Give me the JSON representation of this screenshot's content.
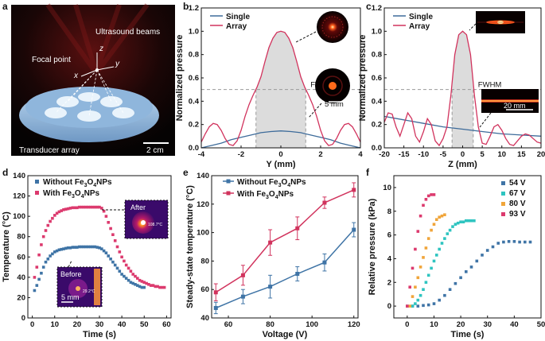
{
  "panels": {
    "a": "a",
    "b": "b",
    "c": "c",
    "d": "d",
    "e": "e",
    "f": "f"
  },
  "panel_a": {
    "labels": {
      "ultrasound": "Ultrasound beams",
      "focal": "Focal point",
      "transducer": "Transducer array",
      "scale": "2 cm",
      "z": "z",
      "x": "x",
      "y": "y"
    }
  },
  "colors": {
    "single": "#3d6b9a",
    "array": "#d1335d",
    "pink": "#dc3a6e",
    "blue": "#3f74a6",
    "teal": "#2ec4c0",
    "orange": "#f0a53a",
    "gray": "#9a9a9a"
  },
  "chart_data": [
    {
      "id": "b",
      "type": "line",
      "xlabel": "Y (mm)",
      "ylabel": "Normalized pressure",
      "xlim": [
        -4,
        4
      ],
      "ylim": [
        0,
        1.2
      ],
      "xticks": [
        "-4",
        "-2",
        "0",
        "2",
        "4"
      ],
      "yticks": [
        "0.0",
        "0.2",
        "0.4",
        "0.6",
        "0.8",
        "1.0",
        "1.2"
      ],
      "fwhm_label": "FWHM",
      "fwhm_range": [
        -1.25,
        1.25
      ],
      "fwhm_level": 0.5,
      "inset_scale": "5 mm",
      "series": [
        {
          "name": "Single",
          "x": [
            -4,
            -3.5,
            -3,
            -2.5,
            -2,
            -1.5,
            -1,
            -0.5,
            0,
            0.5,
            1,
            1.5,
            2,
            2.5,
            3,
            3.5,
            4
          ],
          "y": [
            0.0,
            0.02,
            0.04,
            0.07,
            0.09,
            0.11,
            0.13,
            0.14,
            0.145,
            0.14,
            0.13,
            0.11,
            0.09,
            0.07,
            0.04,
            0.02,
            0.0
          ]
        },
        {
          "name": "Array",
          "x": [
            -4,
            -3.8,
            -3.6,
            -3.4,
            -3.2,
            -3.0,
            -2.8,
            -2.6,
            -2.4,
            -2.2,
            -2.0,
            -1.8,
            -1.6,
            -1.4,
            -1.2,
            -1.0,
            -0.8,
            -0.6,
            -0.4,
            -0.2,
            0,
            0.2,
            0.4,
            0.6,
            0.8,
            1.0,
            1.2,
            1.4,
            1.6,
            1.8,
            2.0,
            2.2,
            2.4,
            2.6,
            2.8,
            3.0,
            3.2,
            3.4,
            3.6,
            3.8,
            4.0
          ],
          "y": [
            0.05,
            0.12,
            0.18,
            0.21,
            0.2,
            0.15,
            0.08,
            0.03,
            0.02,
            0.06,
            0.15,
            0.27,
            0.37,
            0.45,
            0.52,
            0.61,
            0.74,
            0.86,
            0.94,
            0.99,
            1.0,
            0.99,
            0.94,
            0.86,
            0.74,
            0.61,
            0.52,
            0.45,
            0.37,
            0.27,
            0.15,
            0.06,
            0.02,
            0.03,
            0.08,
            0.15,
            0.2,
            0.21,
            0.18,
            0.12,
            0.05
          ]
        }
      ]
    },
    {
      "id": "c",
      "type": "line",
      "xlabel": "Z (mm)",
      "ylabel": "Normalized pressure",
      "xlim": [
        -20,
        20
      ],
      "ylim": [
        0,
        1.2
      ],
      "xticks": [
        "-20",
        "-15",
        "-10",
        "-5",
        "0",
        "5",
        "10",
        "15",
        "20"
      ],
      "yticks": [
        "0.0",
        "0.2",
        "0.4",
        "0.6",
        "0.8",
        "1.0",
        "1.2"
      ],
      "fwhm_label": "FWHM",
      "fwhm_range": [
        -2.7,
        2.7
      ],
      "fwhm_level": 0.5,
      "inset_scale": "20 mm",
      "series": [
        {
          "name": "Single",
          "x": [
            -20,
            -15,
            -10,
            -5,
            0,
            5,
            10,
            15,
            20
          ],
          "y": [
            0.27,
            0.24,
            0.21,
            0.18,
            0.16,
            0.14,
            0.12,
            0.11,
            0.1
          ]
        },
        {
          "name": "Array",
          "x": [
            -20,
            -19,
            -18,
            -17,
            -16,
            -15,
            -14,
            -13,
            -12,
            -11,
            -10,
            -9,
            -8,
            -7,
            -6,
            -5,
            -4,
            -3,
            -2,
            -1,
            0,
            1,
            2,
            3,
            4,
            5,
            6,
            7,
            8,
            9,
            10,
            11,
            12,
            13,
            14,
            15,
            16,
            17,
            18,
            19,
            20
          ],
          "y": [
            0.22,
            0.3,
            0.29,
            0.18,
            0.1,
            0.2,
            0.3,
            0.25,
            0.1,
            0.05,
            0.14,
            0.25,
            0.2,
            0.06,
            0.02,
            0.08,
            0.18,
            0.45,
            0.8,
            0.97,
            1.0,
            0.97,
            0.8,
            0.45,
            0.18,
            0.04,
            0.03,
            0.1,
            0.18,
            0.2,
            0.15,
            0.08,
            0.03,
            0.02,
            0.06,
            0.1,
            0.12,
            0.11,
            0.08,
            0.05,
            0.04
          ]
        }
      ]
    },
    {
      "id": "d",
      "type": "scatter",
      "xlabel": "Time (s)",
      "ylabel": "Temperature (°C)",
      "xlim": [
        -2,
        62
      ],
      "ylim": [
        0,
        140
      ],
      "xticks": [
        "0",
        "10",
        "20",
        "30",
        "40",
        "50",
        "60"
      ],
      "yticks": [
        "0",
        "20",
        "40",
        "60",
        "80",
        "100",
        "120",
        "140"
      ],
      "inset_after": "After",
      "inset_after_temp": "108.7°C",
      "inset_before": "Before",
      "inset_before_temp": "29.2°C",
      "inset_scale": "5 mm",
      "series": [
        {
          "name": "Without Fe3O4NPs",
          "x": [
            1,
            2,
            3,
            4,
            5,
            6,
            7,
            8,
            9,
            10,
            11,
            12,
            13,
            14,
            15,
            16,
            17,
            18,
            19,
            20,
            21,
            22,
            23,
            24,
            25,
            26,
            27,
            28,
            29,
            30,
            31,
            32,
            33,
            34,
            35,
            36,
            37,
            38,
            39,
            40,
            41,
            42,
            43,
            44,
            45,
            46,
            47,
            48,
            49,
            50
          ],
          "y": [
            27,
            32,
            38,
            44,
            50,
            55,
            58,
            61,
            63,
            65,
            66,
            67,
            67.5,
            68,
            68.5,
            69,
            69,
            69.5,
            69.5,
            69.5,
            70,
            70,
            70,
            70,
            70,
            70,
            70,
            70,
            69.5,
            69,
            68,
            66,
            64,
            61,
            58,
            55,
            52,
            49,
            46,
            43,
            41,
            39,
            37,
            35,
            34,
            33,
            32,
            31,
            30,
            30
          ]
        },
        {
          "name": "With Fe3O4NPs",
          "x": [
            1,
            2,
            3,
            4,
            5,
            6,
            7,
            8,
            9,
            10,
            11,
            12,
            13,
            14,
            15,
            16,
            17,
            18,
            19,
            20,
            21,
            22,
            23,
            24,
            25,
            26,
            27,
            28,
            29,
            30,
            31,
            32,
            33,
            34,
            35,
            36,
            37,
            38,
            39,
            40,
            41,
            42,
            43,
            44,
            45,
            46,
            47,
            48,
            49,
            50,
            51,
            52,
            53,
            54,
            55,
            56,
            57,
            58,
            59
          ],
          "y": [
            40,
            50,
            62,
            72,
            80,
            86,
            91,
            95,
            98,
            101,
            103,
            104.5,
            105.5,
            106.5,
            107,
            107.5,
            108,
            108.5,
            108.5,
            108.5,
            109,
            109,
            109,
            109,
            109,
            109,
            109,
            109,
            109,
            109,
            108,
            105,
            100,
            94,
            88,
            82,
            76,
            70,
            65,
            60,
            56,
            52,
            49,
            46,
            43,
            41,
            39,
            37,
            36,
            35,
            34,
            33,
            32,
            32,
            31,
            31,
            30,
            30,
            30
          ]
        }
      ]
    },
    {
      "id": "e",
      "type": "line",
      "xlabel": "Voltage (V)",
      "ylabel": "Steady-state temperature (°C)",
      "xlim": [
        52,
        122
      ],
      "ylim": [
        40,
        140
      ],
      "xticks": [
        "60",
        "80",
        "100",
        "120"
      ],
      "yticks": [
        "40",
        "60",
        "80",
        "100",
        "120",
        "140"
      ],
      "series": [
        {
          "name": "Without Fe3O4NPs",
          "x": [
            54,
            67,
            80,
            93,
            106,
            120
          ],
          "y": [
            47,
            55,
            62,
            71,
            79,
            102
          ],
          "err": [
            4,
            5,
            8,
            5,
            6,
            5
          ]
        },
        {
          "name": "With Fe3O4NPs",
          "x": [
            54,
            67,
            80,
            93,
            106,
            120
          ],
          "y": [
            58,
            70,
            93,
            103,
            121,
            130
          ],
          "err": [
            6,
            7,
            9,
            8,
            4,
            5
          ]
        }
      ]
    },
    {
      "id": "f",
      "type": "scatter",
      "xlabel": "Time (s)",
      "ylabel": "Relative pressure (kPa)",
      "xlim": [
        -5,
        50
      ],
      "ylim": [
        -1,
        11
      ],
      "xticks": [
        "0",
        "10",
        "20",
        "30",
        "40",
        "50"
      ],
      "yticks": [
        "0",
        "2",
        "4",
        "6",
        "8",
        "10"
      ],
      "series": [
        {
          "name": "54 V",
          "x": [
            0,
            2,
            4,
            6,
            8,
            10,
            12,
            14,
            16,
            18,
            20,
            22,
            24,
            26,
            28,
            30,
            32,
            34,
            36,
            38,
            40,
            42,
            44,
            46
          ],
          "y": [
            0,
            0,
            0,
            0.05,
            0.1,
            0.2,
            0.5,
            0.9,
            1.4,
            1.9,
            2.4,
            2.9,
            3.3,
            3.8,
            4.3,
            4.7,
            5.0,
            5.3,
            5.4,
            5.45,
            5.45,
            5.4,
            5.4,
            5.4
          ]
        },
        {
          "name": "67 V",
          "x": [
            2,
            3,
            4,
            5,
            6,
            7,
            8,
            9,
            10,
            11,
            12,
            13,
            14,
            15,
            16,
            17,
            18,
            19,
            20,
            21,
            22,
            23,
            24,
            25
          ],
          "y": [
            0,
            0.2,
            0.5,
            0.9,
            1.4,
            2.0,
            2.6,
            3.2,
            3.8,
            4.3,
            4.8,
            5.3,
            5.7,
            6.1,
            6.4,
            6.7,
            6.9,
            7.0,
            7.1,
            7.1,
            7.2,
            7.2,
            7.2,
            7.2
          ]
        },
        {
          "name": "80 V",
          "x": [
            1,
            2,
            3,
            4,
            5,
            6,
            7,
            8,
            9,
            10,
            11,
            12,
            13,
            14
          ],
          "y": [
            0,
            0.8,
            1.6,
            2.4,
            3.3,
            4.1,
            4.9,
            5.7,
            6.4,
            6.9,
            7.3,
            7.5,
            7.6,
            7.7
          ]
        },
        {
          "name": "93 V",
          "x": [
            0,
            1,
            2,
            3,
            4,
            5,
            6,
            7,
            8,
            9,
            10
          ],
          "y": [
            0,
            1.6,
            3.2,
            4.8,
            6.3,
            7.6,
            8.5,
            9.0,
            9.3,
            9.4,
            9.4
          ]
        }
      ]
    }
  ]
}
